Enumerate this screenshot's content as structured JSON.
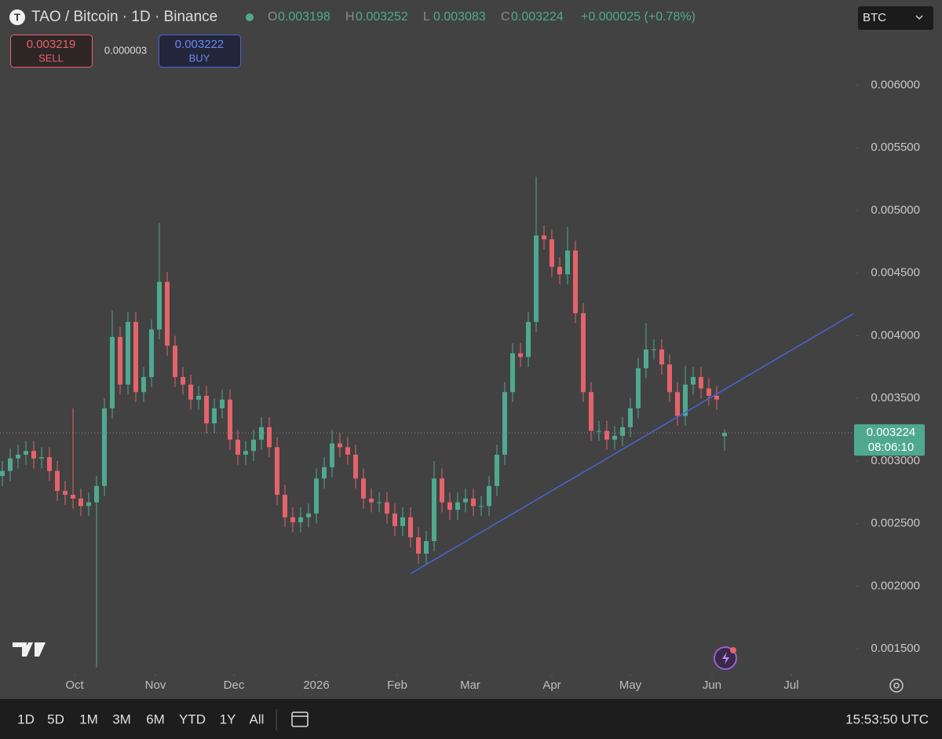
{
  "header": {
    "symbol": "TAO / Bitcoin · 1D · Binance",
    "ohlc": [
      {
        "key": "O",
        "value": 0.003198
      },
      {
        "key": "H",
        "value": 0.003252
      },
      {
        "key": "L",
        "value": 0.003083
      },
      {
        "key": "C",
        "value": 0.003224
      }
    ],
    "change": "+0.000025 (+0.78%)",
    "sell": {
      "price": "0.003219",
      "label": "SELL"
    },
    "spread": "0.000003",
    "buy": {
      "price": "0.003222",
      "label": "BUY"
    },
    "currency": "BTC"
  },
  "chart_data": {
    "type": "candlestick",
    "open": [
      0.00288,
      0.00292,
      0.00302,
      0.00305,
      0.00308,
      0.00302,
      0.00303,
      0.00292,
      0.00276,
      0.00273,
      0.0027,
      0.00264,
      0.00267,
      0.0028,
      0.00342,
      0.00399,
      0.00361,
      0.00411,
      0.00355,
      0.00367,
      0.00405,
      0.00443,
      0.00392,
      0.00367,
      0.00361,
      0.00349,
      0.00352,
      0.0033,
      0.00342,
      0.00349,
      0.00317,
      0.00305,
      0.00308,
      0.00317,
      0.00327,
      0.00311,
      0.00273,
      0.00255,
      0.00251,
      0.00255,
      0.00258,
      0.00286,
      0.00295,
      0.00314,
      0.00311,
      0.00305,
      0.00286,
      0.0027,
      0.00267,
      0.00267,
      0.00258,
      0.00248,
      0.00255,
      0.00239,
      0.00226,
      0.00236,
      0.00286,
      0.00267,
      0.00261,
      0.00267,
      0.0027,
      0.00264,
      0.00264,
      0.0028,
      0.00305,
      0.00355,
      0.00386,
      0.00383,
      0.00411,
      0.0048,
      0.00477,
      0.00455,
      0.00449,
      0.00468,
      0.00418,
      0.00355,
      0.00324,
      0.00324,
      0.00317,
      0.0032,
      0.00327,
      0.00342,
      0.00374,
      0.00389,
      0.00389,
      0.00377,
      0.00355,
      0.00336,
      0.00361,
      0.00367,
      0.00358,
      0.00352,
      0.003198
    ],
    "high": [
      0.003,
      0.0031,
      0.00313,
      0.00316,
      0.00316,
      0.00311,
      0.00311,
      0.003,
      0.00284,
      0.00342,
      0.00278,
      0.00275,
      0.00288,
      0.0035,
      0.0042,
      0.00407,
      0.00419,
      0.00419,
      0.00375,
      0.00413,
      0.0049,
      0.00451,
      0.004,
      0.00375,
      0.00369,
      0.0036,
      0.0036,
      0.0035,
      0.00357,
      0.00357,
      0.00325,
      0.00316,
      0.00325,
      0.00335,
      0.00335,
      0.00319,
      0.00281,
      0.00263,
      0.00263,
      0.00266,
      0.00294,
      0.00303,
      0.00325,
      0.00322,
      0.00319,
      0.00313,
      0.00294,
      0.00278,
      0.00275,
      0.00275,
      0.00266,
      0.00263,
      0.00263,
      0.00247,
      0.00244,
      0.003,
      0.00294,
      0.00275,
      0.00275,
      0.00278,
      0.00278,
      0.00272,
      0.00288,
      0.00313,
      0.00363,
      0.00394,
      0.00394,
      0.00419,
      0.00527,
      0.00488,
      0.00485,
      0.00463,
      0.00487,
      0.00476,
      0.00426,
      0.00363,
      0.00332,
      0.00332,
      0.00328,
      0.00335,
      0.0035,
      0.00382,
      0.0041,
      0.00397,
      0.00397,
      0.00385,
      0.00363,
      0.00376,
      0.00375,
      0.00375,
      0.00366,
      0.0036,
      0.003252
    ],
    "low": [
      0.0028,
      0.00284,
      0.00294,
      0.00297,
      0.00294,
      0.00294,
      0.00284,
      0.00268,
      0.00265,
      0.00262,
      0.00256,
      0.00256,
      0.00135,
      0.00272,
      0.00334,
      0.00353,
      0.00353,
      0.00347,
      0.00347,
      0.00359,
      0.00397,
      0.00384,
      0.00359,
      0.00353,
      0.00341,
      0.00341,
      0.00322,
      0.00322,
      0.00334,
      0.00309,
      0.00297,
      0.00297,
      0.003,
      0.00309,
      0.00303,
      0.00265,
      0.00247,
      0.00243,
      0.00243,
      0.00247,
      0.0025,
      0.00278,
      0.00287,
      0.00303,
      0.00297,
      0.00278,
      0.00262,
      0.00259,
      0.00259,
      0.0025,
      0.0024,
      0.0024,
      0.00231,
      0.00218,
      0.00218,
      0.00228,
      0.00259,
      0.00253,
      0.00253,
      0.00259,
      0.00256,
      0.00256,
      0.00256,
      0.00272,
      0.00297,
      0.00347,
      0.00375,
      0.00375,
      0.00403,
      0.00469,
      0.00447,
      0.00441,
      0.00441,
      0.0041,
      0.00347,
      0.00316,
      0.00316,
      0.00309,
      0.00309,
      0.00312,
      0.00319,
      0.00334,
      0.00366,
      0.00381,
      0.00369,
      0.00347,
      0.00328,
      0.00328,
      0.00353,
      0.0035,
      0.00344,
      0.00341,
      0.003083
    ],
    "close": [
      0.00292,
      0.00302,
      0.00305,
      0.00308,
      0.00302,
      0.00303,
      0.00292,
      0.00276,
      0.00273,
      0.0027,
      0.00264,
      0.00267,
      0.0028,
      0.00342,
      0.00399,
      0.00361,
      0.00411,
      0.00355,
      0.00367,
      0.00405,
      0.00443,
      0.00392,
      0.00367,
      0.00361,
      0.00349,
      0.00352,
      0.0033,
      0.00342,
      0.00349,
      0.00317,
      0.00305,
      0.00308,
      0.00317,
      0.00327,
      0.00311,
      0.00273,
      0.00255,
      0.00251,
      0.00255,
      0.00258,
      0.00286,
      0.00295,
      0.00314,
      0.00311,
      0.00305,
      0.00286,
      0.0027,
      0.00267,
      0.00267,
      0.00258,
      0.00248,
      0.00255,
      0.00239,
      0.00226,
      0.00236,
      0.00286,
      0.00267,
      0.00261,
      0.00267,
      0.0027,
      0.00264,
      0.00264,
      0.0028,
      0.00305,
      0.00355,
      0.00386,
      0.00383,
      0.00411,
      0.0048,
      0.00477,
      0.00455,
      0.00449,
      0.00468,
      0.00418,
      0.00355,
      0.00324,
      0.00324,
      0.00317,
      0.0032,
      0.00327,
      0.00342,
      0.00374,
      0.00389,
      0.00389,
      0.00377,
      0.00355,
      0.00336,
      0.00361,
      0.00367,
      0.00358,
      0.00352,
      0.00349,
      0.003224
    ],
    "up_color": "#4fa98f",
    "down_color": "#e5636a",
    "xlim": [
      -0.3,
      108.7
    ],
    "xticks": [
      {
        "value": 9.2,
        "label": "Oct"
      },
      {
        "value": 19.5,
        "label": "Nov"
      },
      {
        "value": 29.5,
        "label": "Dec"
      },
      {
        "value": 40,
        "label": "2026"
      },
      {
        "value": 50.3,
        "label": "Feb"
      },
      {
        "value": 59.6,
        "label": "Mar"
      },
      {
        "value": 70,
        "label": "Apr"
      },
      {
        "value": 80,
        "label": "May"
      },
      {
        "value": 90.4,
        "label": "Jun"
      },
      {
        "value": 100.5,
        "label": "Jul"
      }
    ],
    "ylim": [
      0.0011,
      0.00668
    ],
    "yticks": [
      {
        "value": 0.0015,
        "label": "0.001500"
      },
      {
        "value": 0.002,
        "label": "0.002000"
      },
      {
        "value": 0.0025,
        "label": "0.002500"
      },
      {
        "value": 0.003,
        "label": "0.003000"
      },
      {
        "value": 0.0035,
        "label": "0.003500"
      },
      {
        "value": 0.004,
        "label": "0.004000"
      },
      {
        "value": 0.0045,
        "label": "0.004500"
      },
      {
        "value": 0.005,
        "label": "0.005000"
      },
      {
        "value": 0.0055,
        "label": "0.005500"
      },
      {
        "value": 0.006,
        "label": "0.006000"
      }
    ],
    "trendline": {
      "x": [
        52,
        108.4
      ],
      "y": [
        0.0021,
        0.004175
      ],
      "color": "#4a62d8"
    },
    "last_price": 0.003224,
    "countdown": "08:06:10"
  },
  "toolbar": {
    "ranges": [
      "1D",
      "5D",
      "1M",
      "3M",
      "6M",
      "YTD",
      "1Y",
      "All"
    ],
    "time": "15:53:50 UTC"
  }
}
